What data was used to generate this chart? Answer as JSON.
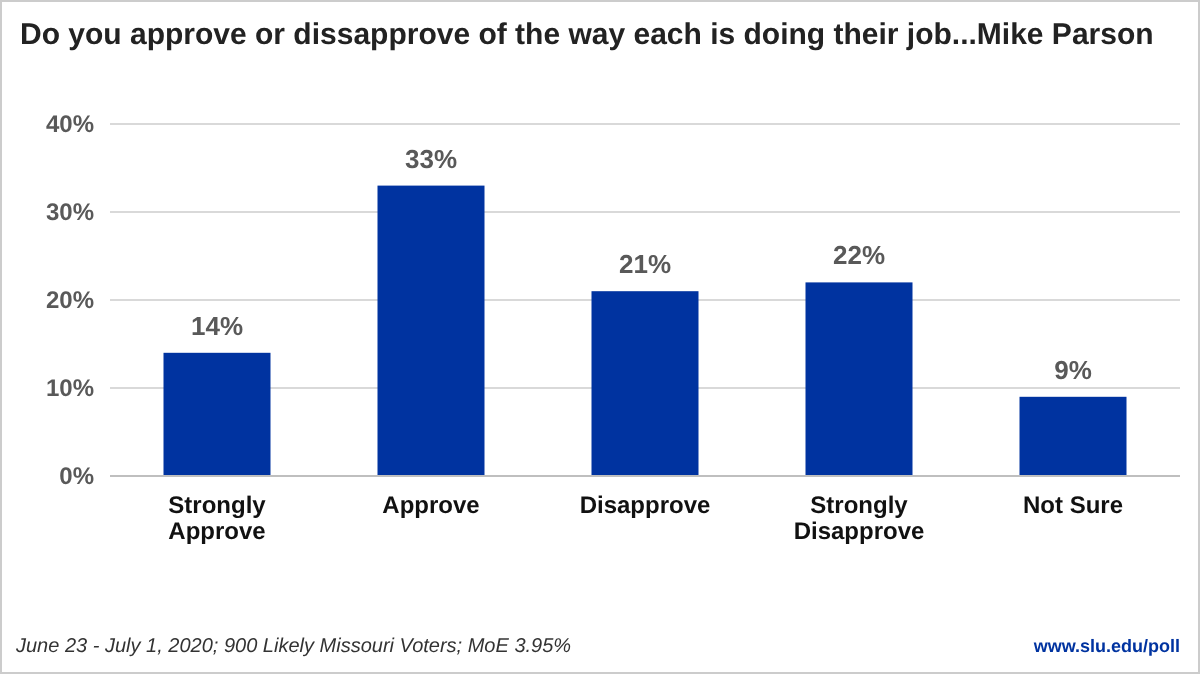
{
  "chart_data": {
    "type": "bar",
    "title": "Do you approve or dissapprove of the way each is doing their job...Mike Parson",
    "categories": [
      "Strongly Approve",
      "Approve",
      "Disapprove",
      "Strongly Disapprove",
      "Not Sure"
    ],
    "values": [
      14,
      33,
      21,
      22,
      9
    ],
    "color": "#0033a0",
    "ylim": [
      0,
      40
    ],
    "yticks": [
      {
        "value": 0,
        "label": "0%"
      },
      {
        "value": 10,
        "label": "10%"
      },
      {
        "value": 20,
        "label": "20%"
      },
      {
        "value": 30,
        "label": "30%"
      },
      {
        "value": 40,
        "label": "40%"
      }
    ],
    "grid": "y",
    "data_labels": true,
    "value_labels": [
      "14%",
      "33%",
      "21%",
      "22%",
      "9%"
    ],
    "annotations": [
      "June 23 - July 1, 2020; 900 Likely Missouri Voters; MoE 3.95%",
      "www.slu.edu/poll"
    ]
  }
}
